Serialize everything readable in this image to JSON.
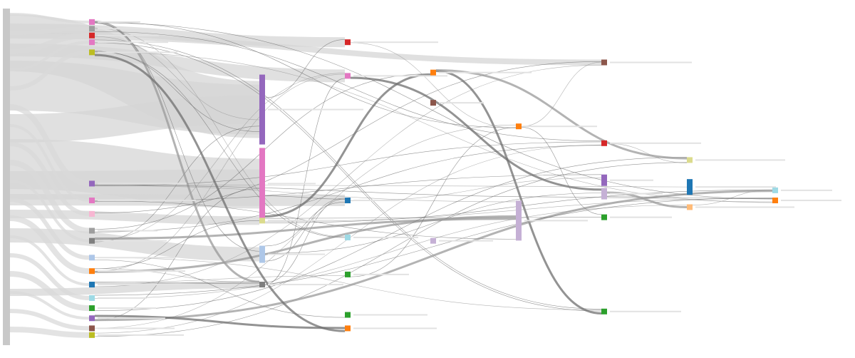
{
  "colors": {
    "background": "#ffffff",
    "flow": "#cfcfcf",
    "flow_dark": "#8a8a8a",
    "source_bar": "#c8c8c8"
  },
  "diagram": {
    "type": "sankey",
    "nodes": [
      {
        "id": "n1",
        "col": 0,
        "label": "",
        "color": "#e377c2",
        "t": 0.04
      },
      {
        "id": "n2",
        "col": 0,
        "label": "",
        "color": "#9e9e9e",
        "t": 0.06
      },
      {
        "id": "n3",
        "col": 0,
        "label": "",
        "color": "#d62728",
        "t": 0.08
      },
      {
        "id": "n4",
        "col": 0,
        "label": "",
        "color": "#e377c2",
        "t": 0.1
      },
      {
        "id": "n5",
        "col": 0,
        "label": "",
        "color": "#bcbd22",
        "t": 0.13
      },
      {
        "id": "n6",
        "col": 0,
        "label": "",
        "color": "#9467bd",
        "t": 0.52
      },
      {
        "id": "n7",
        "col": 0,
        "label": "",
        "color": "#e377c2",
        "t": 0.57
      },
      {
        "id": "n8",
        "col": 0,
        "label": "",
        "color": "#f7b6d2",
        "t": 0.61
      },
      {
        "id": "n9",
        "col": 0,
        "label": "",
        "color": "#9e9e9e",
        "t": 0.66
      },
      {
        "id": "n10",
        "col": 0,
        "label": "",
        "color": "#7f7f7f",
        "t": 0.69
      },
      {
        "id": "n11",
        "col": 0,
        "label": "",
        "color": "#aec7e8",
        "t": 0.74
      },
      {
        "id": "n12",
        "col": 0,
        "label": "",
        "color": "#ff7f0e",
        "t": 0.78
      },
      {
        "id": "n13",
        "col": 0,
        "label": "",
        "color": "#1f77b4",
        "t": 0.82
      },
      {
        "id": "n14",
        "col": 0,
        "label": "",
        "color": "#9edae5",
        "t": 0.86
      },
      {
        "id": "n15",
        "col": 0,
        "label": "",
        "color": "#2ca02c",
        "t": 0.89
      },
      {
        "id": "n16",
        "col": 0,
        "label": "",
        "color": "#9467bd",
        "t": 0.92
      },
      {
        "id": "n17",
        "col": 0,
        "label": "",
        "color": "#8c564b",
        "t": 0.95
      },
      {
        "id": "n18",
        "col": 0,
        "label": "",
        "color": "#bcbd22",
        "t": 0.97
      },
      {
        "id": "m1",
        "col": 1,
        "label": "",
        "color": "#9467bd",
        "t": 0.3
      },
      {
        "id": "m2",
        "col": 1,
        "label": "",
        "color": "#e377c2",
        "t": 0.52
      },
      {
        "id": "m3",
        "col": 1,
        "label": "",
        "color": "#aec7e8",
        "t": 0.73
      },
      {
        "id": "m4",
        "col": 1,
        "label": "",
        "color": "#dbdb8d",
        "t": 0.63
      },
      {
        "id": "m5",
        "col": 1,
        "label": "",
        "color": "#7f7f7f",
        "t": 0.82
      },
      {
        "id": "p1",
        "col": 2,
        "label": "",
        "color": "#d62728",
        "t": 0.1
      },
      {
        "id": "p2",
        "col": 2,
        "label": "",
        "color": "#e377c2",
        "t": 0.2
      },
      {
        "id": "p3",
        "col": 2,
        "label": "",
        "color": "#1f77b4",
        "t": 0.57
      },
      {
        "id": "p4",
        "col": 2,
        "label": "",
        "color": "#2ca02c",
        "t": 0.79
      },
      {
        "id": "p5",
        "col": 2,
        "label": "",
        "color": "#9edae5",
        "t": 0.68
      },
      {
        "id": "p6",
        "col": 2,
        "label": "",
        "color": "#2ca02c",
        "t": 0.91
      },
      {
        "id": "p7",
        "col": 2,
        "label": "",
        "color": "#ff7f0e",
        "t": 0.95
      },
      {
        "id": "q1",
        "col": 3,
        "label": "",
        "color": "#ff7f0e",
        "t": 0.19
      },
      {
        "id": "q2",
        "col": 3,
        "label": "",
        "color": "#8c564b",
        "t": 0.28
      },
      {
        "id": "q3",
        "col": 3,
        "label": "",
        "color": "#c5b0d5",
        "t": 0.69
      },
      {
        "id": "r1",
        "col": 4,
        "label": "",
        "color": "#c5b0d5",
        "t": 0.63
      },
      {
        "id": "r2",
        "col": 4,
        "label": "",
        "color": "#ff7f0e",
        "t": 0.35
      },
      {
        "id": "s1",
        "col": 5,
        "label": "",
        "color": "#8c564b",
        "t": 0.16
      },
      {
        "id": "s2",
        "col": 5,
        "label": "",
        "color": "#d62728",
        "t": 0.4
      },
      {
        "id": "s3",
        "col": 5,
        "label": "",
        "color": "#9467bd",
        "t": 0.51
      },
      {
        "id": "s4",
        "col": 5,
        "label": "",
        "color": "#c5b0d5",
        "t": 0.55
      },
      {
        "id": "s5",
        "col": 5,
        "label": "",
        "color": "#2ca02c",
        "t": 0.62
      },
      {
        "id": "s6",
        "col": 5,
        "label": "",
        "color": "#2ca02c",
        "t": 0.9
      },
      {
        "id": "t1",
        "col": 6,
        "label": "",
        "color": "#1f77b4",
        "t": 0.53
      },
      {
        "id": "t2",
        "col": 6,
        "label": "",
        "color": "#dbdb8d",
        "t": 0.45
      },
      {
        "id": "t3",
        "col": 6,
        "label": "",
        "color": "#ffbb78",
        "t": 0.59
      },
      {
        "id": "u1",
        "col": 7,
        "label": "",
        "color": "#9edae5",
        "t": 0.54
      },
      {
        "id": "u2",
        "col": 7,
        "label": "",
        "color": "#ff7f0e",
        "t": 0.57
      }
    ]
  }
}
